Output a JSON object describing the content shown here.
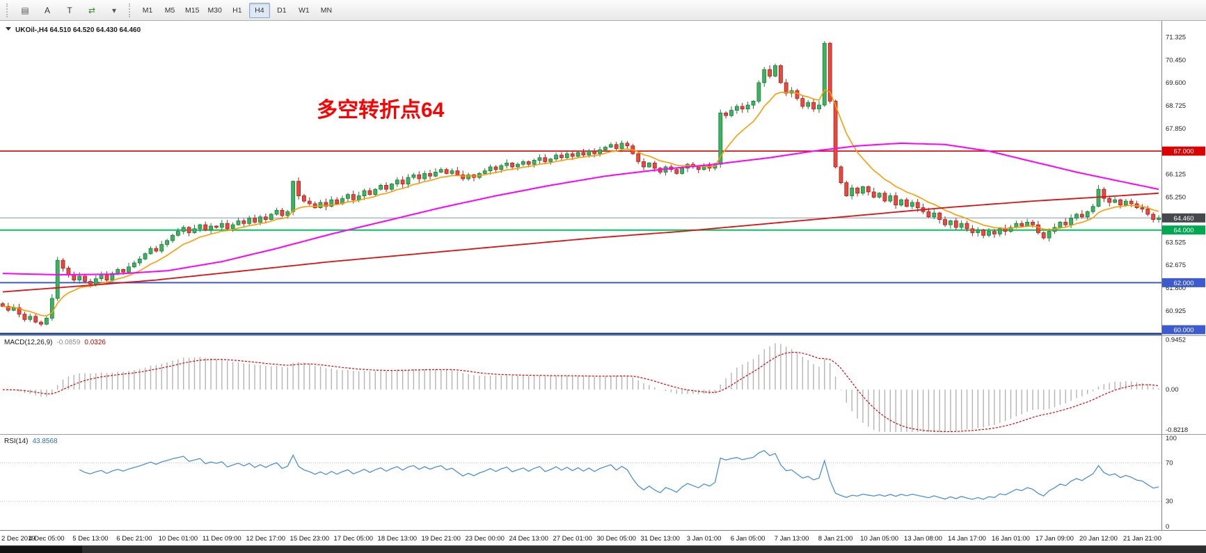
{
  "toolbar": {
    "icons": [
      {
        "name": "chart-type-icon",
        "glyph": "▤",
        "color": "#555"
      },
      {
        "name": "annotate-text-icon",
        "glyph": "A",
        "color": "#333"
      },
      {
        "name": "template-icon",
        "glyph": "T",
        "color": "#333"
      },
      {
        "name": "auto-scroll-icon",
        "glyph": "⇄",
        "color": "#2e8b2e"
      },
      {
        "name": "dropdown-icon",
        "glyph": "▾",
        "color": "#555"
      }
    ],
    "timeframes": [
      {
        "label": "M1",
        "active": false
      },
      {
        "label": "M5",
        "active": false
      },
      {
        "label": "M15",
        "active": false
      },
      {
        "label": "M30",
        "active": false
      },
      {
        "label": "H1",
        "active": false
      },
      {
        "label": "H4",
        "active": true
      },
      {
        "label": "D1",
        "active": false
      },
      {
        "label": "W1",
        "active": false
      },
      {
        "label": "MN",
        "active": false
      }
    ]
  },
  "chart": {
    "title_full": "UKOil-,H4 64.510 64.520 64.430 64.460",
    "annotation": {
      "text": "多空转折点64",
      "color": "#fe0000"
    },
    "y_range": [
      60.0,
      71.95
    ],
    "price_scale_ticks": [
      "71.325",
      "70.450",
      "69.600",
      "68.725",
      "67.850",
      "66.125",
      "65.250",
      "63.525",
      "62.675",
      "61.800",
      "60.925"
    ],
    "levels": [
      {
        "value": 67.0,
        "label": "67.000",
        "line_color": "#dd0000",
        "box_color": "#dd0000",
        "width": 1.6
      },
      {
        "value": 64.46,
        "label": "64.460",
        "line_color": "#8098b0",
        "box_color": "#45484c",
        "width": 1
      },
      {
        "value": 64.0,
        "label": "64.000",
        "line_color": "#00c060",
        "box_color": "#00a851",
        "width": 2
      },
      {
        "value": 62.0,
        "label": "62.000",
        "line_color": "#3c5bd0",
        "box_color": "#3c5bd0",
        "width": 2
      },
      {
        "value": 60.0,
        "label": "60.000",
        "line_color": "#1b3d8f",
        "box_color": "#3c5bd0",
        "width": 3
      }
    ]
  },
  "chart_data": {
    "type": "candlestick",
    "symbol": "UKOil-",
    "timeframe": "H4",
    "ohlc_display": {
      "open": "64.510",
      "high": "64.520",
      "low": "64.430",
      "close": "64.460"
    },
    "first_open": 61.2,
    "closes": [
      61.1,
      60.95,
      61.05,
      60.8,
      60.6,
      60.72,
      60.5,
      60.42,
      60.65,
      61.4,
      62.85,
      62.55,
      62.3,
      62.1,
      62.25,
      62.05,
      61.95,
      62.15,
      62.3,
      62.1,
      62.35,
      62.5,
      62.4,
      62.6,
      62.75,
      62.9,
      63.1,
      63.3,
      63.2,
      63.45,
      63.6,
      63.8,
      63.95,
      64.1,
      63.9,
      64.05,
      64.2,
      64.0,
      64.15,
      64.1,
      64.25,
      64.05,
      64.2,
      64.35,
      64.25,
      64.45,
      64.3,
      64.5,
      64.4,
      64.6,
      64.75,
      64.55,
      64.7,
      65.85,
      65.3,
      65.1,
      65.0,
      64.85,
      65.05,
      64.9,
      65.15,
      65.0,
      65.2,
      65.35,
      65.15,
      65.3,
      65.5,
      65.35,
      65.55,
      65.7,
      65.55,
      65.75,
      65.9,
      65.75,
      66.0,
      66.1,
      65.95,
      66.15,
      66.05,
      66.2,
      66.3,
      66.15,
      66.25,
      66.1,
      65.95,
      66.1,
      66.0,
      66.15,
      66.25,
      66.4,
      66.3,
      66.45,
      66.55,
      66.4,
      66.5,
      66.6,
      66.5,
      66.65,
      66.75,
      66.6,
      66.7,
      66.85,
      66.75,
      66.9,
      66.8,
      66.95,
      66.85,
      67.0,
      66.9,
      67.05,
      67.15,
      67.25,
      67.1,
      67.3,
      67.2,
      66.9,
      66.6,
      66.4,
      66.55,
      66.35,
      66.2,
      66.4,
      66.3,
      66.15,
      66.35,
      66.5,
      66.4,
      66.3,
      66.45,
      66.35,
      66.5,
      68.45,
      68.35,
      68.55,
      68.7,
      68.6,
      68.75,
      68.9,
      69.6,
      70.1,
      69.85,
      70.25,
      69.6,
      69.2,
      69.3,
      69.0,
      68.7,
      68.85,
      68.6,
      68.75,
      71.1,
      68.9,
      66.4,
      65.8,
      65.3,
      65.6,
      65.4,
      65.65,
      65.45,
      65.25,
      65.4,
      65.1,
      65.3,
      64.95,
      65.15,
      64.9,
      65.05,
      64.85,
      64.7,
      64.5,
      64.65,
      64.4,
      64.2,
      64.35,
      64.1,
      64.25,
      64.05,
      63.9,
      64.0,
      63.8,
      63.95,
      63.85,
      64.05,
      63.95,
      64.1,
      64.25,
      64.15,
      64.3,
      64.2,
      63.9,
      63.7,
      63.95,
      64.1,
      64.3,
      64.2,
      64.45,
      64.6,
      64.5,
      64.7,
      64.9,
      65.55,
      65.2,
      65.05,
      65.15,
      64.95,
      65.1,
      65.0,
      64.85,
      64.8,
      64.6,
      64.4,
      64.46
    ],
    "label_step": 8,
    "time_labels": [
      "2 Dec 2019",
      "4 Dec 05:00",
      "5 Dec 13:00",
      "6 Dec 21:00",
      "10 Dec 01:00",
      "11 Dec 09:00",
      "12 Dec 17:00",
      "15 Dec 23:00",
      "17 Dec 05:00",
      "18 Dec 13:00",
      "19 Dec 21:00",
      "23 Dec 00:00",
      "24 Dec 13:00",
      "27 Dec 01:00",
      "30 Dec 05:00",
      "31 Dec 13:00",
      "3 Jan 01:00",
      "6 Jan 05:00",
      "7 Jan 13:00",
      "8 Jan 21:00",
      "10 Jan 05:00",
      "13 Jan 08:00",
      "14 Jan 17:00",
      "16 Jan 01:00",
      "17 Jan 09:00",
      "20 Jan 12:00",
      "21 Jan 21:00"
    ],
    "candle_colors": {
      "up_fill": "#3db25f",
      "up_stroke": "#1c7a3a",
      "down_fill": "#e8493f",
      "down_stroke": "#a8201a"
    },
    "ma_lines": {
      "fast": {
        "type": "ema",
        "period": 10,
        "color": "#ff9b00"
      },
      "mid": {
        "color": "#ff00ff",
        "anchors": [
          [
            0,
            62.35
          ],
          [
            10,
            62.3
          ],
          [
            20,
            62.32
          ],
          [
            30,
            62.45
          ],
          [
            40,
            62.8
          ],
          [
            50,
            63.3
          ],
          [
            60,
            63.85
          ],
          [
            70,
            64.35
          ],
          [
            80,
            64.85
          ],
          [
            90,
            65.3
          ],
          [
            100,
            65.7
          ],
          [
            110,
            66.05
          ],
          [
            120,
            66.3
          ],
          [
            130,
            66.5
          ],
          [
            140,
            66.75
          ],
          [
            148,
            67.0
          ],
          [
            156,
            67.2
          ],
          [
            164,
            67.3
          ],
          [
            172,
            67.25
          ],
          [
            180,
            67.0
          ],
          [
            188,
            66.6
          ],
          [
            196,
            66.2
          ],
          [
            204,
            65.85
          ],
          [
            211,
            65.55
          ]
        ]
      },
      "slow": {
        "color": "#dd1111",
        "anchors": [
          [
            0,
            61.65
          ],
          [
            16,
            61.9
          ],
          [
            28,
            62.1
          ],
          [
            44,
            62.45
          ],
          [
            60,
            62.8
          ],
          [
            76,
            63.1
          ],
          [
            92,
            63.4
          ],
          [
            108,
            63.7
          ],
          [
            124,
            63.95
          ],
          [
            140,
            64.25
          ],
          [
            156,
            64.55
          ],
          [
            172,
            64.85
          ],
          [
            188,
            65.1
          ],
          [
            200,
            65.25
          ],
          [
            211,
            65.4
          ]
        ]
      }
    },
    "macd": {
      "label": "MACD(12,26,9)",
      "value_main": "-0.0859",
      "value_signal": "0.0326",
      "fast": 12,
      "slow": 26,
      "signal_period": 9,
      "scale_labels": [
        "0.9452",
        "0.00",
        "-0.8218"
      ],
      "scale_values": [
        0.9452,
        0,
        -0.8218
      ],
      "colors": {
        "hist": "#b3b3b3",
        "signal": "#e00000"
      }
    },
    "rsi": {
      "label": "RSI(14)",
      "value": "43.8568",
      "period": 14,
      "levels": [
        70,
        30
      ],
      "scale_labels": [
        "100",
        "70",
        "30",
        "0"
      ],
      "scale_values": [
        100,
        70,
        30,
        0
      ],
      "color": "#4a90d9"
    }
  }
}
